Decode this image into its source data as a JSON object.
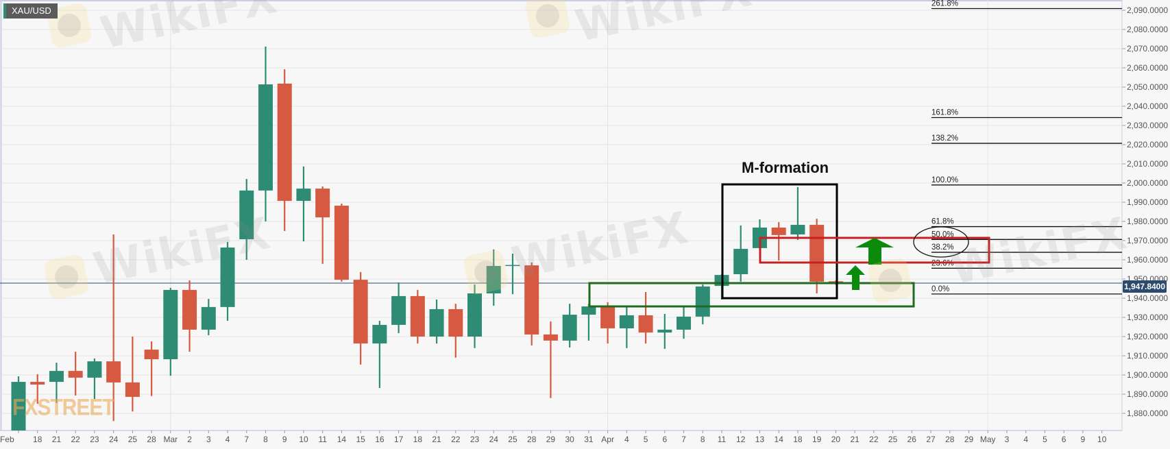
{
  "symbol": "XAU/USD",
  "watermark_text": "WikiFX",
  "watermark_text_2": "FXSTREET",
  "annotation_label": "M-formation",
  "current_price": {
    "value": 1947.84,
    "label": "1,947.8400",
    "color": "#2b4a6d"
  },
  "colors": {
    "up": "#2e8b74",
    "down": "#d65a41",
    "background": "#f7f7f7",
    "grid": "#e4e4e4",
    "box_black": "#000000",
    "box_red": "#c62020",
    "box_green": "#1f6b1f",
    "arrow_green": "#0b8a0b"
  },
  "chart_data": {
    "type": "candlestick",
    "title": "XAU/USD",
    "ylim": [
      1870,
      2095
    ],
    "grid": true,
    "y_ticks": [
      "2,090.0000",
      "2,080.0000",
      "2,070.0000",
      "2,060.0000",
      "2,050.0000",
      "2,040.0000",
      "2,030.0000",
      "2,020.0000",
      "2,010.0000",
      "2,000.0000",
      "1,990.0000",
      "1,980.0000",
      "1,970.0000",
      "1,960.0000",
      "1,950.0000",
      "1,940.0000",
      "1,930.0000",
      "1,920.0000",
      "1,910.0000",
      "1,900.0000",
      "1,890.0000",
      "1,880.0000"
    ],
    "x_ticks": [
      "Feb",
      "18",
      "21",
      "22",
      "23",
      "24",
      "25",
      "28",
      "Mar",
      "2",
      "3",
      "4",
      "7",
      "8",
      "9",
      "10",
      "11",
      "14",
      "15",
      "16",
      "17",
      "18",
      "21",
      "22",
      "23",
      "24",
      "25",
      "28",
      "29",
      "30",
      "31",
      "Apr",
      "4",
      "5",
      "6",
      "7",
      "8",
      "11",
      "12",
      "13",
      "14",
      "18",
      "19",
      "20",
      "21",
      "22",
      "25",
      "26",
      "27",
      "28",
      "29",
      "May",
      "3",
      "4",
      "5",
      "6",
      "9",
      "10"
    ],
    "candles": [
      {
        "date": "Feb 17",
        "o": 1870,
        "h": 1899.3,
        "l": 1866,
        "c": 1896.4
      },
      {
        "date": "Feb 18",
        "o": 1896.4,
        "h": 1900.4,
        "l": 1885,
        "c": 1895
      },
      {
        "date": "Feb 21",
        "o": 1896.4,
        "h": 1906.4,
        "l": 1885.4,
        "c": 1902.1
      },
      {
        "date": "Feb 22",
        "o": 1902.1,
        "h": 1912.1,
        "l": 1889.3,
        "c": 1898.6
      },
      {
        "date": "Feb 23",
        "o": 1898.6,
        "h": 1908.6,
        "l": 1887.5,
        "c": 1907.1
      },
      {
        "date": "Feb 24",
        "o": 1907.1,
        "h": 1973.2,
        "l": 1876,
        "c": 1896.1
      },
      {
        "date": "Feb 25",
        "o": 1896.1,
        "h": 1920,
        "l": 1881,
        "c": 1888.6
      },
      {
        "date": "Feb 28",
        "o": 1913.2,
        "h": 1917.5,
        "l": 1889,
        "c": 1908.2
      },
      {
        "date": "Mar 1",
        "o": 1908.2,
        "h": 1945.4,
        "l": 1899.6,
        "c": 1944.3
      },
      {
        "date": "Mar 2",
        "o": 1944.3,
        "h": 1949.3,
        "l": 1912.1,
        "c": 1923.6
      },
      {
        "date": "Mar 3",
        "o": 1923.6,
        "h": 1939.6,
        "l": 1920.7,
        "c": 1935.4
      },
      {
        "date": "Mar 4",
        "o": 1935.4,
        "h": 1969.3,
        "l": 1928.2,
        "c": 1966.4
      },
      {
        "date": "Mar 7",
        "o": 1970.7,
        "h": 2002.1,
        "l": 1960,
        "c": 1996.1
      },
      {
        "date": "Mar 8",
        "o": 1996.1,
        "h": 2071.1,
        "l": 1980,
        "c": 2051.4
      },
      {
        "date": "Mar 9",
        "o": 2051.8,
        "h": 2059.3,
        "l": 1975,
        "c": 1990.7
      },
      {
        "date": "Mar 10",
        "o": 1990.7,
        "h": 2008.6,
        "l": 1969.6,
        "c": 1997.1
      },
      {
        "date": "Mar 11",
        "o": 1997.1,
        "h": 1998.2,
        "l": 1957.9,
        "c": 1982.1
      },
      {
        "date": "Mar 14",
        "o": 1988.2,
        "h": 1989.3,
        "l": 1948.6,
        "c": 1949.6
      },
      {
        "date": "Mar 15",
        "o": 1949.6,
        "h": 1953.6,
        "l": 1905.4,
        "c": 1916.4
      },
      {
        "date": "Mar 16",
        "o": 1916.4,
        "h": 1928.2,
        "l": 1893.2,
        "c": 1926.1
      },
      {
        "date": "Mar 17",
        "o": 1926.1,
        "h": 1948.2,
        "l": 1921.8,
        "c": 1941.1
      },
      {
        "date": "Mar 18",
        "o": 1941.1,
        "h": 1944.3,
        "l": 1916.4,
        "c": 1920
      },
      {
        "date": "Mar 21",
        "o": 1920,
        "h": 1939.3,
        "l": 1916.4,
        "c": 1934.3
      },
      {
        "date": "Mar 22",
        "o": 1934.3,
        "h": 1937.1,
        "l": 1909,
        "c": 1920
      },
      {
        "date": "Mar 23",
        "o": 1920,
        "h": 1947.1,
        "l": 1914,
        "c": 1942.5
      },
      {
        "date": "Mar 24",
        "o": 1942.5,
        "h": 1965.4,
        "l": 1936.1,
        "c": 1956.8
      },
      {
        "date": "Mar 25",
        "o": 1956.9,
        "h": 1963.2,
        "l": 1942.1,
        "c": 1957.3
      },
      {
        "date": "Mar 28",
        "o": 1957.1,
        "h": 1958.6,
        "l": 1915.4,
        "c": 1921.1
      },
      {
        "date": "Mar 29",
        "o": 1921.1,
        "h": 1927.9,
        "l": 1888,
        "c": 1917.9
      },
      {
        "date": "Mar 30",
        "o": 1917.9,
        "h": 1937.1,
        "l": 1914.3,
        "c": 1931.4
      },
      {
        "date": "Mar 31",
        "o": 1931.4,
        "h": 1937,
        "l": 1917.9,
        "c": 1935.7
      },
      {
        "date": "Apr 1",
        "o": 1935.4,
        "h": 1937.9,
        "l": 1916.4,
        "c": 1924.3
      },
      {
        "date": "Apr 4",
        "o": 1924.3,
        "h": 1935.4,
        "l": 1914,
        "c": 1931.1
      },
      {
        "date": "Apr 5",
        "o": 1931.1,
        "h": 1943.2,
        "l": 1916.4,
        "c": 1922.1
      },
      {
        "date": "Apr 6",
        "o": 1922.1,
        "h": 1931.8,
        "l": 1913.6,
        "c": 1923.6
      },
      {
        "date": "Apr 7",
        "o": 1923.6,
        "h": 1935.4,
        "l": 1918.9,
        "c": 1930.4
      },
      {
        "date": "Apr 8",
        "o": 1930.4,
        "h": 1947.1,
        "l": 1926.4,
        "c": 1946.1
      },
      {
        "date": "Apr 11",
        "o": 1946.4,
        "h": 1952.5,
        "l": 1939.3,
        "c": 1952.1
      },
      {
        "date": "Apr 12",
        "o": 1952.5,
        "h": 1977.9,
        "l": 1948.6,
        "c": 1965.7
      },
      {
        "date": "Apr 13",
        "o": 1966.1,
        "h": 1981.1,
        "l": 1965,
        "c": 1976.8
      },
      {
        "date": "Apr 14",
        "o": 1976.8,
        "h": 1979.6,
        "l": 1959.6,
        "c": 1972.9
      },
      {
        "date": "Apr 18",
        "o": 1973.2,
        "h": 1997.9,
        "l": 1970.4,
        "c": 1978.2
      },
      {
        "date": "Apr 19",
        "o": 1978.2,
        "h": 1981.4,
        "l": 1942.5,
        "c": 1948.6
      },
      {
        "date": "Apr 20",
        "o": 1948.8,
        "h": 1949.2,
        "l": 1947,
        "c": 1947.84
      }
    ],
    "fibonacci": {
      "price_0": 1942.2,
      "price_100": 1999.0,
      "levels": [
        {
          "ratio": 0,
          "label": "0.0%"
        },
        {
          "ratio": 0.236,
          "label": "23.6%"
        },
        {
          "ratio": 0.382,
          "label": "38.2%"
        },
        {
          "ratio": 0.5,
          "label": "50.0%"
        },
        {
          "ratio": 0.618,
          "label": "61.8%"
        },
        {
          "ratio": 1,
          "label": "100.0%"
        },
        {
          "ratio": 1.382,
          "label": "138.2%"
        },
        {
          "ratio": 1.618,
          "label": "161.8%"
        },
        {
          "ratio": 2.618,
          "label": "261.8%"
        }
      ]
    }
  }
}
